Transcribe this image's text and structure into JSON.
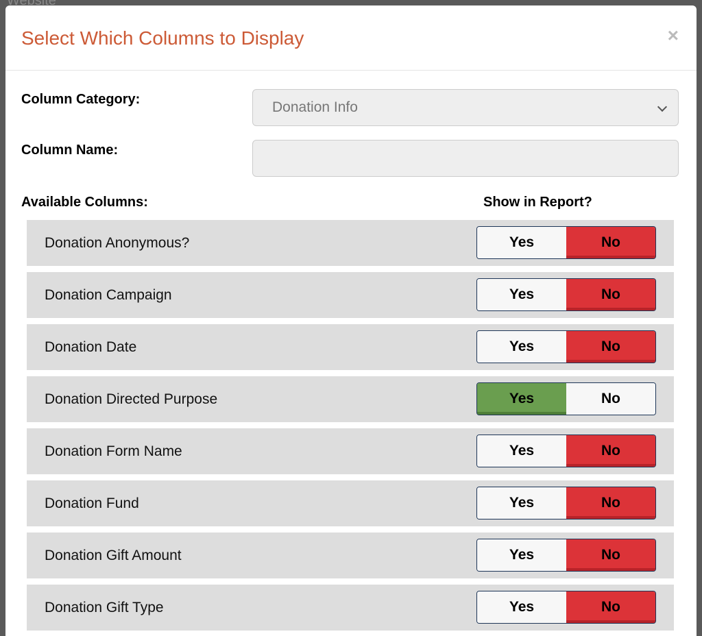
{
  "background_text": "Website",
  "header": {
    "title": "Select Which Columns to Display",
    "close": "×"
  },
  "form": {
    "category_label": "Column Category:",
    "category_value": "Donation Info",
    "name_label": "Column Name:"
  },
  "list": {
    "available_header": "Available Columns:",
    "show_header": "Show in Report?",
    "options": [
      "Yes",
      "No"
    ],
    "rows": [
      {
        "name": "Donation Anonymous?",
        "show": false
      },
      {
        "name": "Donation Campaign",
        "show": false
      },
      {
        "name": "Donation Date",
        "show": false
      },
      {
        "name": "Donation Directed Purpose",
        "show": true
      },
      {
        "name": "Donation Form Name",
        "show": false
      },
      {
        "name": "Donation Fund",
        "show": false
      },
      {
        "name": "Donation Gift Amount",
        "show": false
      },
      {
        "name": "Donation Gift Type",
        "show": false
      }
    ]
  }
}
